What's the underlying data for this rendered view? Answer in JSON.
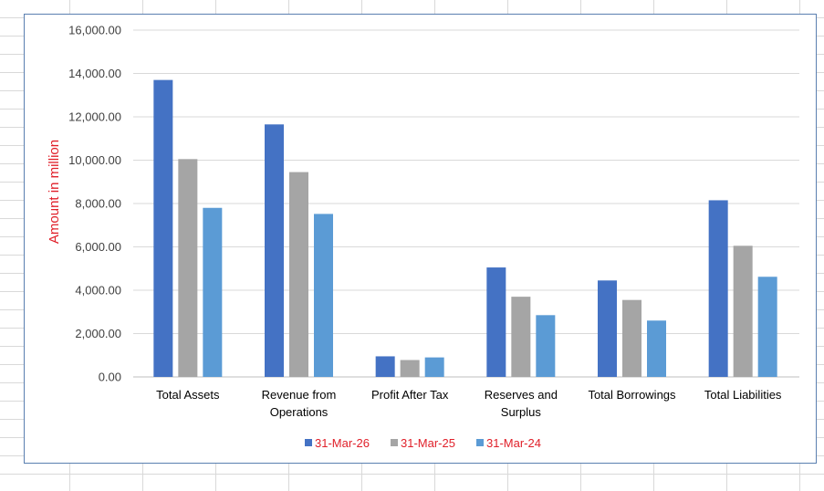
{
  "chart_data": {
    "type": "bar",
    "title": "",
    "xlabel": "",
    "ylabel": "Amount in million",
    "ylim": [
      0,
      16000
    ],
    "ytick_step": 2000,
    "ytick_labels": [
      "0.00",
      "2,000.00",
      "4,000.00",
      "6,000.00",
      "8,000.00",
      "10,000.00",
      "12,000.00",
      "14,000.00",
      "16,000.00"
    ],
    "grid": true,
    "legend_position": "bottom",
    "categories": [
      [
        "Total Assets"
      ],
      [
        "Revenue from",
        "Operations"
      ],
      [
        "Profit After Tax"
      ],
      [
        "Reserves and",
        "Surplus"
      ],
      [
        "Total Borrowings"
      ],
      [
        "Total Liabilities"
      ]
    ],
    "series": [
      {
        "name": "31-Mar-26",
        "color": "#4472c4",
        "values": [
          13700,
          11650,
          950,
          5050,
          4450,
          8150
        ]
      },
      {
        "name": "31-Mar-25",
        "color": "#a5a5a5",
        "values": [
          10050,
          9450,
          780,
          3700,
          3550,
          6050
        ]
      },
      {
        "name": "31-Mar-24",
        "color": "#5b9bd5",
        "values": [
          7800,
          7520,
          900,
          2850,
          2600,
          4620
        ]
      }
    ],
    "colors": {
      "ylabel": "#e0202a",
      "legend_text": "#e0202a",
      "grid": "#d9d9d9",
      "frame": "#5a7fb0"
    }
  }
}
